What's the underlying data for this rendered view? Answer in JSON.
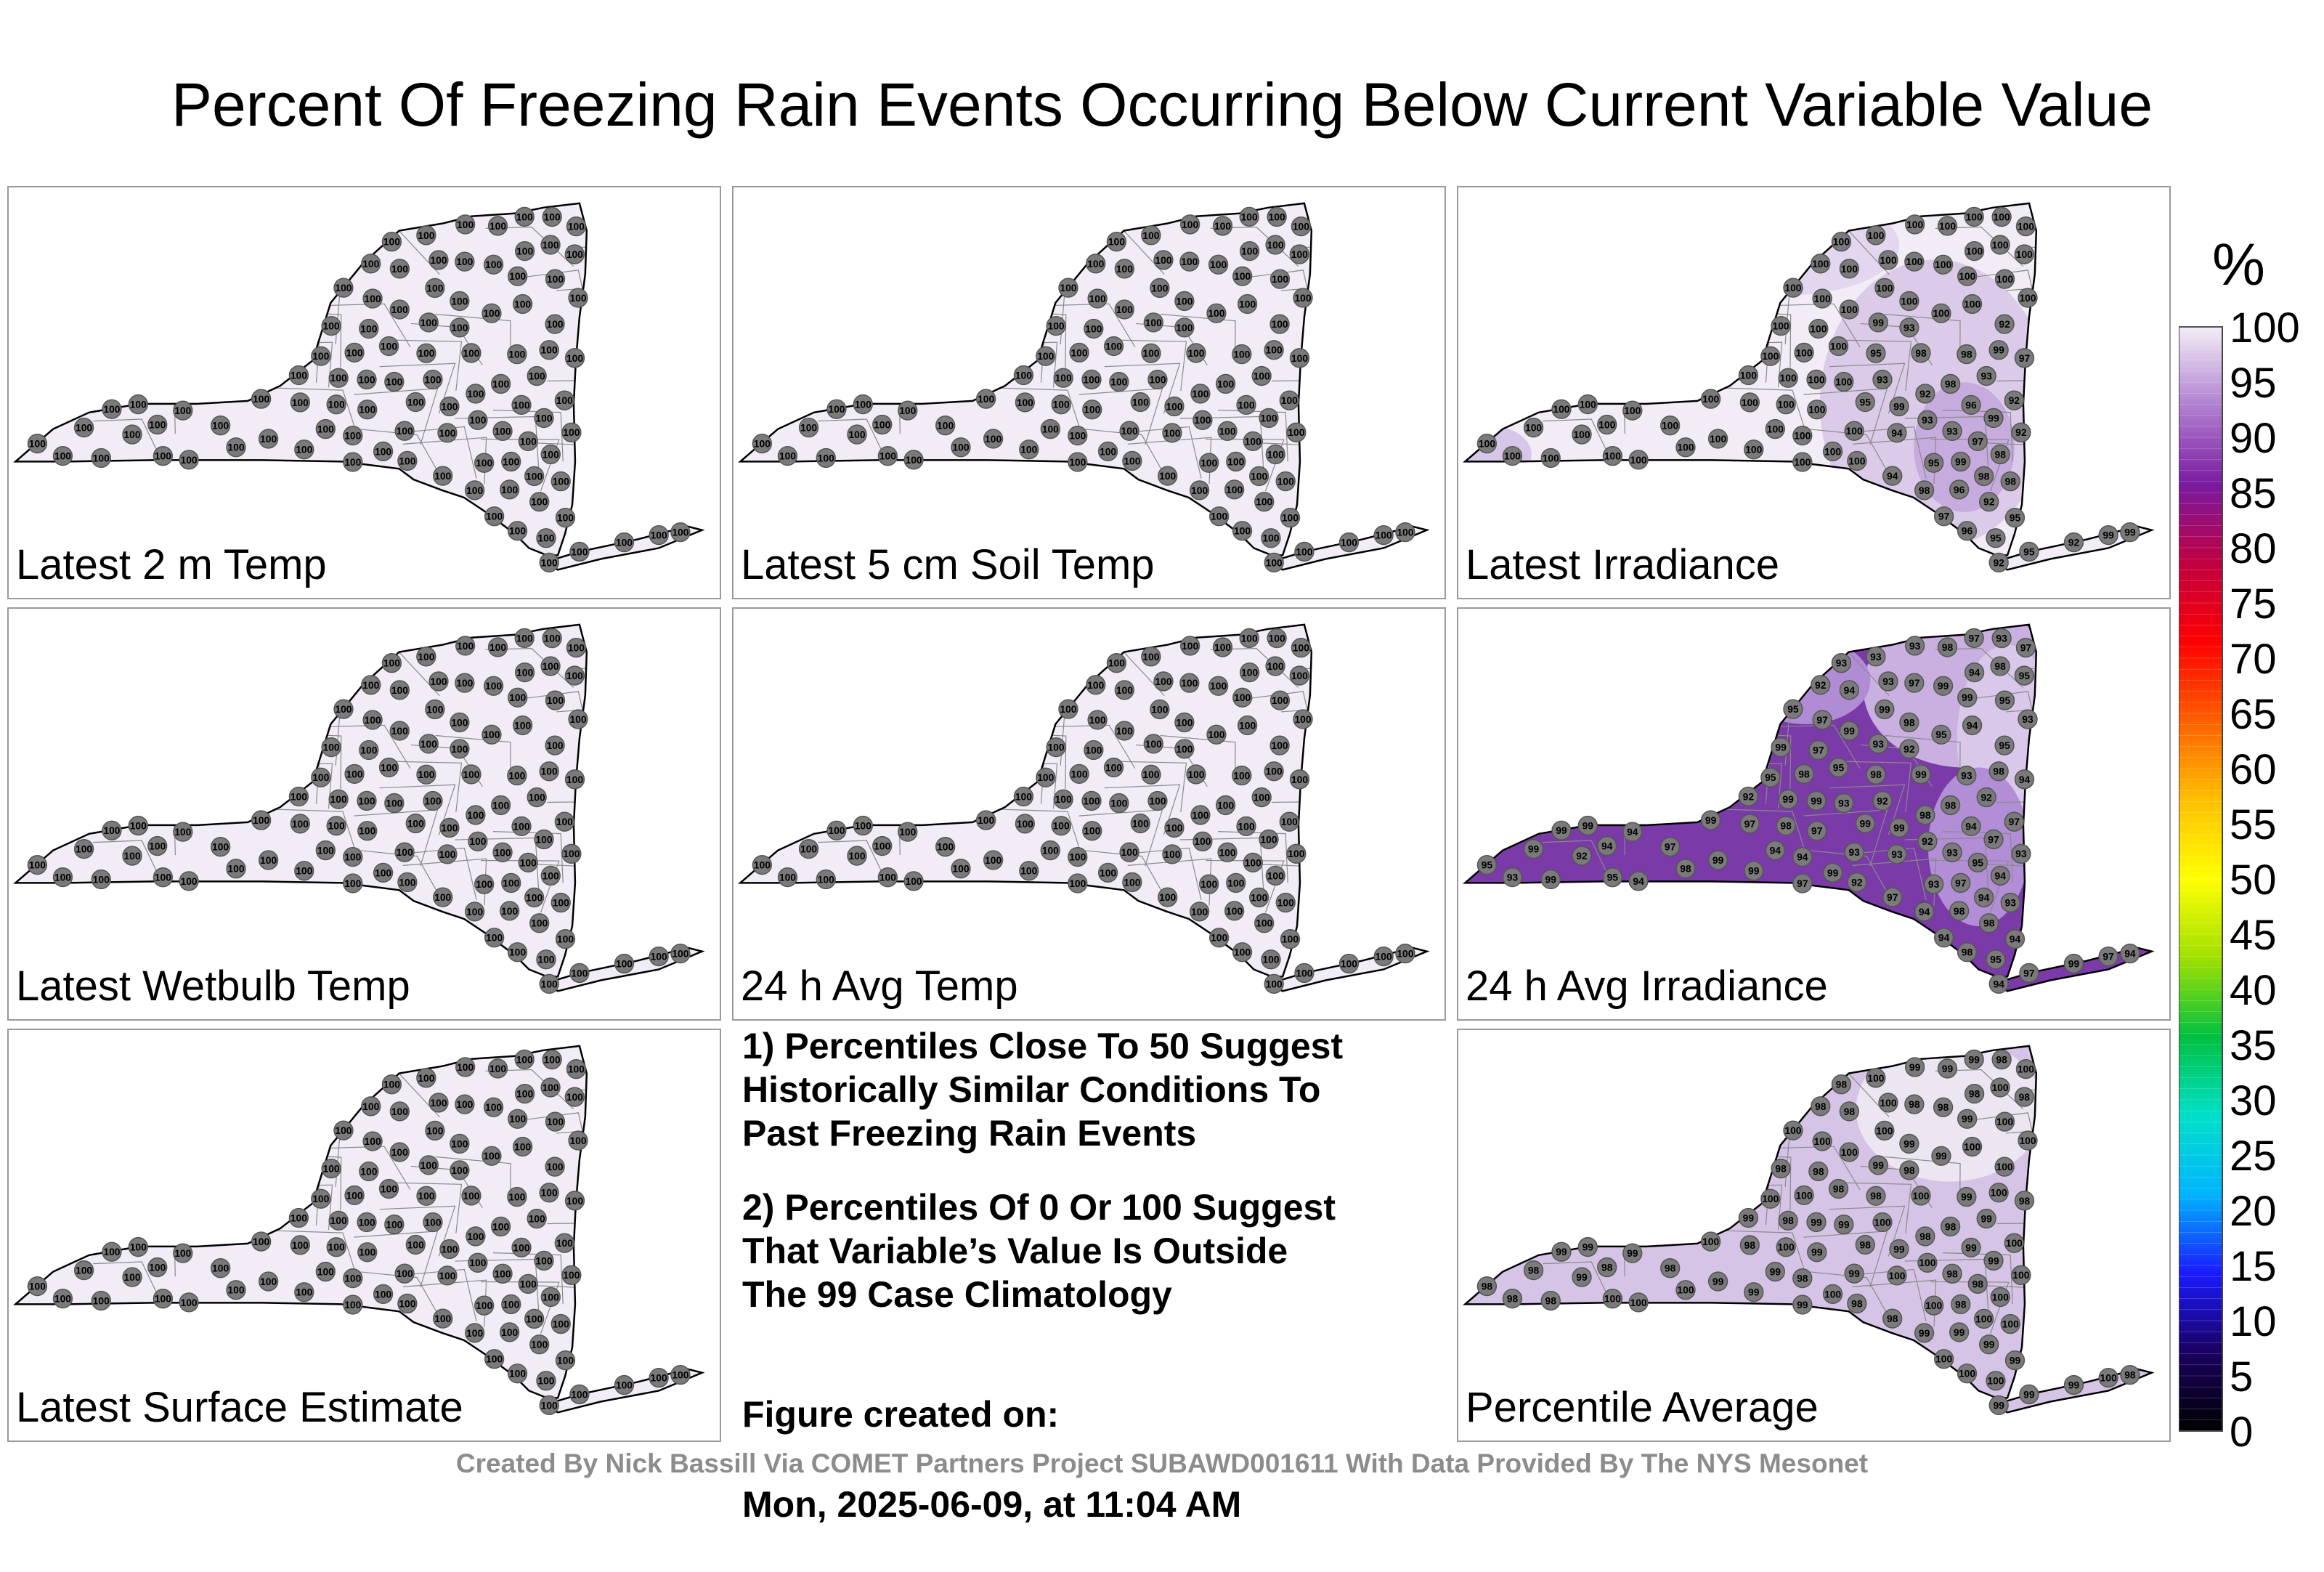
{
  "title": "Percent Of Freezing Rain Events Occurring Below Current Variable Value",
  "panels": [
    {
      "label": "Latest 2 m Temp",
      "mode": "uniform100"
    },
    {
      "label": "Latest 5 cm Soil Temp",
      "mode": "uniform100"
    },
    {
      "label": "Latest Irradiance",
      "mode": "irradiance"
    },
    {
      "label": "Latest Wetbulb Temp",
      "mode": "uniform100"
    },
    {
      "label": "24 h Avg Temp",
      "mode": "uniform100"
    },
    {
      "label": "24 h Avg Irradiance",
      "mode": "avgirr"
    },
    {
      "label": "Latest Surface Estimate",
      "mode": "uniform100"
    },
    {
      "label": "Percentile Average",
      "mode": "average"
    }
  ],
  "notes": [
    "1) Percentiles Close To 50 Suggest\nHistorically Similar Conditions To\nPast Freezing Rain Events",
    "2) Percentiles Of 0 Or 100 Suggest\nThat Variable’s Value Is Outside\nThe 99 Case Climatology"
  ],
  "created": {
    "label": "Figure created on:",
    "date": "Mon, 2025-06-09, at 11:04 AM"
  },
  "footer": "Created By Nick Bassill Via COMET Partners Project SUBAWD001611 With Data Provided By The NYS Mesonet",
  "colorbar": {
    "unit": "%",
    "ticks": [
      "100",
      "95",
      "90",
      "85",
      "80",
      "75",
      "70",
      "65",
      "60",
      "55",
      "50",
      "45",
      "40",
      "35",
      "30",
      "25",
      "20",
      "15",
      "10",
      "5",
      "0"
    ],
    "colors": {
      "stops": [
        "#000000",
        "#1a0060",
        "#1a1aff",
        "#00b4ff",
        "#00e0c8",
        "#00c040",
        "#a0e000",
        "#ffff00",
        "#ffc000",
        "#ff6000",
        "#ff0000",
        "#c00040",
        "#7a1aa0",
        "#b080d0",
        "#f2eef6"
      ]
    }
  },
  "station_values": {
    "uniform": "100",
    "irradiance_samples": [
      "100",
      "97",
      "98",
      "94",
      "96",
      "95",
      "99",
      "92",
      "93"
    ],
    "average_samples": [
      "99",
      "100",
      "98"
    ],
    "avg_irradiance_samples": [
      "92",
      "93",
      "95",
      "94",
      "97",
      "98",
      "99"
    ]
  }
}
